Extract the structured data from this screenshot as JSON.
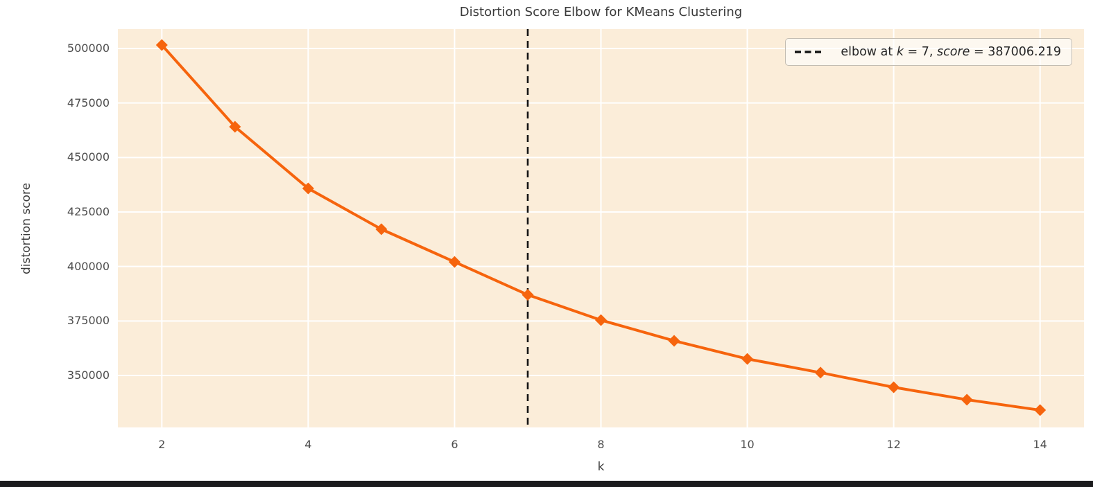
{
  "page": {
    "background": "#ffffff",
    "bottom_bar_color": "#1b1b1d"
  },
  "chart_data": {
    "type": "line",
    "title": "Distortion Score Elbow for KMeans Clustering",
    "xlabel": "k",
    "ylabel": "distortion score",
    "x": [
      2,
      3,
      4,
      5,
      6,
      7,
      8,
      9,
      10,
      11,
      12,
      13,
      14
    ],
    "series": [
      {
        "name": "distortion score",
        "values": [
          501600,
          464100,
          435800,
          417100,
          402100,
          387006.219,
          375400,
          365900,
          357600,
          351300,
          344600,
          338900,
          334100
        ]
      }
    ],
    "xticks": [
      2,
      4,
      6,
      8,
      10,
      12,
      14
    ],
    "yticks": [
      350000,
      375000,
      400000,
      425000,
      450000,
      475000,
      500000
    ],
    "xlim": [
      1.4,
      14.6
    ],
    "ylim": [
      326170,
      508900
    ],
    "grid": true,
    "legend_position": "upper right",
    "elbow": {
      "k": 7,
      "score": 387006.219
    },
    "marker": "diamond",
    "colors": {
      "line": "#F6640D",
      "plot_bg": "#FBEDD9",
      "grid": "#FFFFFF",
      "elbow_line": "#141414",
      "tick_text": "#4d4d4d",
      "title_text": "#3a3a3a"
    }
  },
  "legend": {
    "prefix": "elbow at ",
    "k_var": "k",
    "k_value": " = 7, ",
    "score_var": "score",
    "score_value": " = 387006.219"
  }
}
